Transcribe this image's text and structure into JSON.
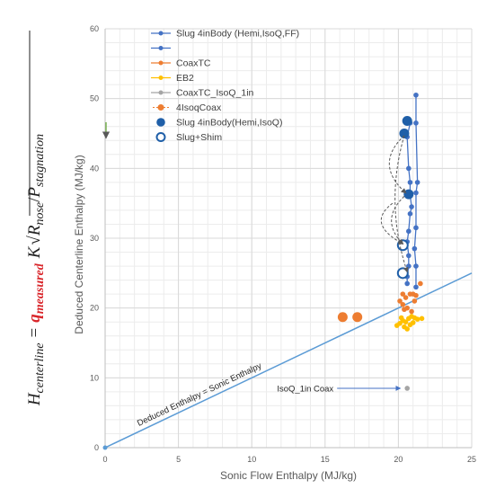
{
  "chart_data": {
    "type": "scatter",
    "title": "",
    "xlabel": "Sonic Flow Enthalpy (MJ/kg)",
    "ylabel": "Deduced Centerline Enthalpy (MJ/kg)",
    "xlim": [
      0,
      25
    ],
    "ylim": [
      0,
      60
    ],
    "xticks": [
      0,
      5,
      10,
      15,
      20,
      25
    ],
    "yticks": [
      0,
      10,
      20,
      30,
      40,
      50,
      60
    ],
    "grid": true,
    "legend_position": "top-left inside",
    "formula": {
      "lhs": "H",
      "lhs_sub": "centerline",
      "eq": "=",
      "q": "q",
      "q_sub": "measured",
      "k": "K",
      "frac_num": "R",
      "frac_num_sub": "nose",
      "slash": "/",
      "frac_den": "P",
      "frac_den_sub": "stagnation"
    },
    "series": [
      {
        "name": "Slug 4inBody (Hemi,IsoQ,FF)",
        "color": "#4472c4",
        "style": "line-marker",
        "points": [
          [
            20.6,
            23.5
          ],
          [
            20.6,
            24.5
          ],
          [
            20.7,
            26.0
          ],
          [
            20.7,
            27.5
          ],
          [
            20.6,
            29.5
          ],
          [
            20.7,
            31.0
          ],
          [
            20.8,
            33.5
          ],
          [
            20.9,
            34.5
          ],
          [
            20.8,
            36.2
          ],
          [
            20.8,
            38.0
          ],
          [
            20.7,
            40.0
          ],
          [
            20.6,
            44.5
          ],
          [
            20.8,
            46.5
          ],
          [
            20.7,
            47.0
          ]
        ]
      },
      {
        "name": "",
        "color": "#4472c4",
        "style": "line-marker",
        "points": [
          [
            21.2,
            23.0
          ],
          [
            21.2,
            26.0
          ],
          [
            21.1,
            28.5
          ],
          [
            21.2,
            31.5
          ],
          [
            21.2,
            36.5
          ],
          [
            21.3,
            38.0
          ],
          [
            21.2,
            46.5
          ],
          [
            21.2,
            50.5
          ]
        ]
      },
      {
        "name": "CoaxTC",
        "color": "#ed7d31",
        "style": "marker",
        "points": [
          [
            20.3,
            22.0
          ],
          [
            20.5,
            21.5
          ],
          [
            20.8,
            22.0
          ],
          [
            21.0,
            22.0
          ],
          [
            21.2,
            21.8
          ],
          [
            21.5,
            23.5
          ],
          [
            20.1,
            21.0
          ],
          [
            20.3,
            20.5
          ],
          [
            20.6,
            20.0
          ],
          [
            20.9,
            19.5
          ],
          [
            21.1,
            21.0
          ],
          [
            20.4,
            19.8
          ]
        ]
      },
      {
        "name": "EB2",
        "color": "#ffc000",
        "style": "marker",
        "points": [
          [
            19.9,
            17.5
          ],
          [
            20.1,
            17.8
          ],
          [
            20.3,
            18.2
          ],
          [
            20.5,
            18.0
          ],
          [
            20.7,
            18.5
          ],
          [
            20.9,
            18.8
          ],
          [
            21.1,
            18.6
          ],
          [
            21.3,
            18.4
          ],
          [
            21.6,
            18.5
          ],
          [
            20.6,
            17.0
          ],
          [
            20.4,
            17.3
          ],
          [
            20.8,
            17.6
          ],
          [
            21.0,
            17.9
          ],
          [
            20.2,
            18.6
          ]
        ]
      },
      {
        "name": "CoaxTC_IsoQ_1in",
        "color": "#a5a5a5",
        "style": "marker",
        "points": [
          [
            20.6,
            8.5
          ]
        ]
      },
      {
        "name": "4IsoqCoax",
        "color": "#ed7d31",
        "style": "big-marker",
        "points": [
          [
            16.2,
            18.7
          ],
          [
            17.2,
            18.7
          ]
        ]
      },
      {
        "name": "Slug 4inBody(Hemi,IsoQ)",
        "color": "#1f5fa8",
        "style": "big-marker",
        "points": [
          [
            20.6,
            46.8
          ],
          [
            20.4,
            45.0
          ],
          [
            20.7,
            36.3
          ]
        ]
      },
      {
        "name": "Slug+Shim",
        "color": "#1f5fa8",
        "style": "open-marker",
        "points": [
          [
            20.3,
            29.0
          ],
          [
            20.3,
            25.0
          ]
        ]
      }
    ],
    "reference_line": {
      "label": "Deduced Enthalpy = Sonic Enthalpy",
      "x": [
        0,
        25
      ],
      "y": [
        0,
        25
      ]
    },
    "annotation": {
      "text": "IsoQ_1in Coax",
      "target": [
        20.6,
        8.5
      ]
    },
    "dashed_arrows": [
      {
        "from": [
          20.4,
          44.7
        ],
        "to": [
          20.6,
          25.2
        ]
      },
      {
        "from": [
          20.4,
          36.0
        ],
        "to": [
          20.3,
          29.2
        ]
      },
      {
        "from": [
          19.6,
          35.0
        ],
        "to": [
          20.3,
          29.2
        ]
      },
      {
        "from": [
          20.4,
          44.7
        ],
        "to": [
          20.5,
          36.5
        ]
      }
    ]
  }
}
